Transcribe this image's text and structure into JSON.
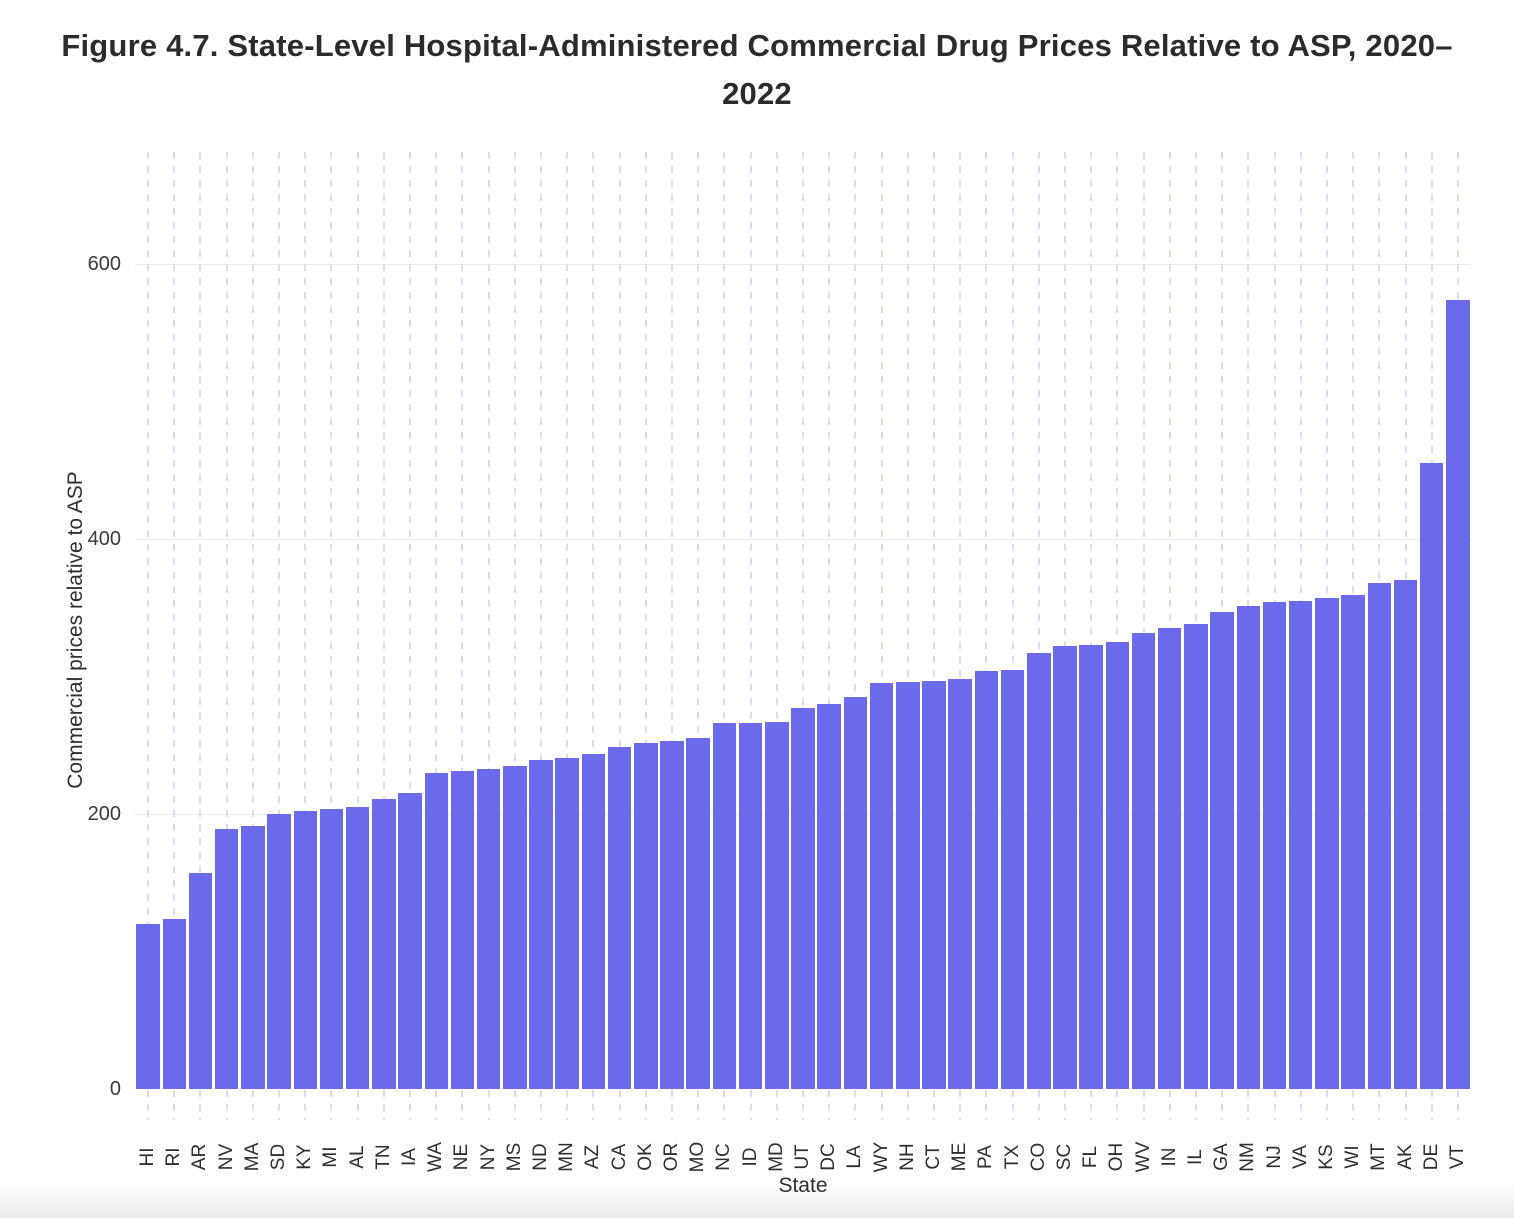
{
  "title": "Figure 4.7. State-Level Hospital-Administered Commercial Drug Prices Relative to ASP, 2020–2022",
  "chart_data": {
    "type": "bar",
    "title": "Figure 4.7. State-Level Hospital-Administered Commercial Drug Prices Relative to ASP, 2020–2022",
    "xlabel": "State",
    "ylabel": "Commercial prices relative to ASP",
    "ylim": [
      0,
      680
    ],
    "yticks": [
      0,
      200,
      400,
      600
    ],
    "legend_position": "none",
    "grid": "light dashed vertical line per category; light solid horizontal lines at y ticks",
    "bar_color": "#6A6AEA",
    "categories": [
      "HI",
      "RI",
      "AR",
      "NV",
      "MA",
      "SD",
      "KY",
      "MI",
      "AL",
      "TN",
      "IA",
      "WA",
      "NE",
      "NY",
      "MS",
      "ND",
      "MN",
      "AZ",
      "CA",
      "OK",
      "OR",
      "MO",
      "NC",
      "ID",
      "MD",
      "UT",
      "DC",
      "LA",
      "WY",
      "NH",
      "CT",
      "ME",
      "PA",
      "TX",
      "CO",
      "SC",
      "FL",
      "OH",
      "WV",
      "IN",
      "IL",
      "GA",
      "NM",
      "NJ",
      "VA",
      "KS",
      "WI",
      "MT",
      "AK",
      "DE",
      "VT"
    ],
    "values": [
      120,
      124,
      157,
      189,
      191,
      200,
      202,
      204,
      205,
      211,
      215,
      230,
      231,
      233,
      235,
      239,
      241,
      244,
      249,
      252,
      253,
      255,
      266,
      266,
      267,
      277,
      280,
      285,
      295,
      296,
      297,
      298,
      304,
      305,
      317,
      322,
      323,
      325,
      332,
      335,
      338,
      347,
      351,
      354,
      355,
      357,
      359,
      368,
      370,
      455,
      574
    ]
  },
  "colors": {
    "bar": "#6A6AEA",
    "vertical_grid": "#dddbf4",
    "horizontal_grid": "#e9e9f2",
    "title_text": "#2b2b2b",
    "tick_text": "#3a3a3a",
    "background": "#ffffff"
  }
}
